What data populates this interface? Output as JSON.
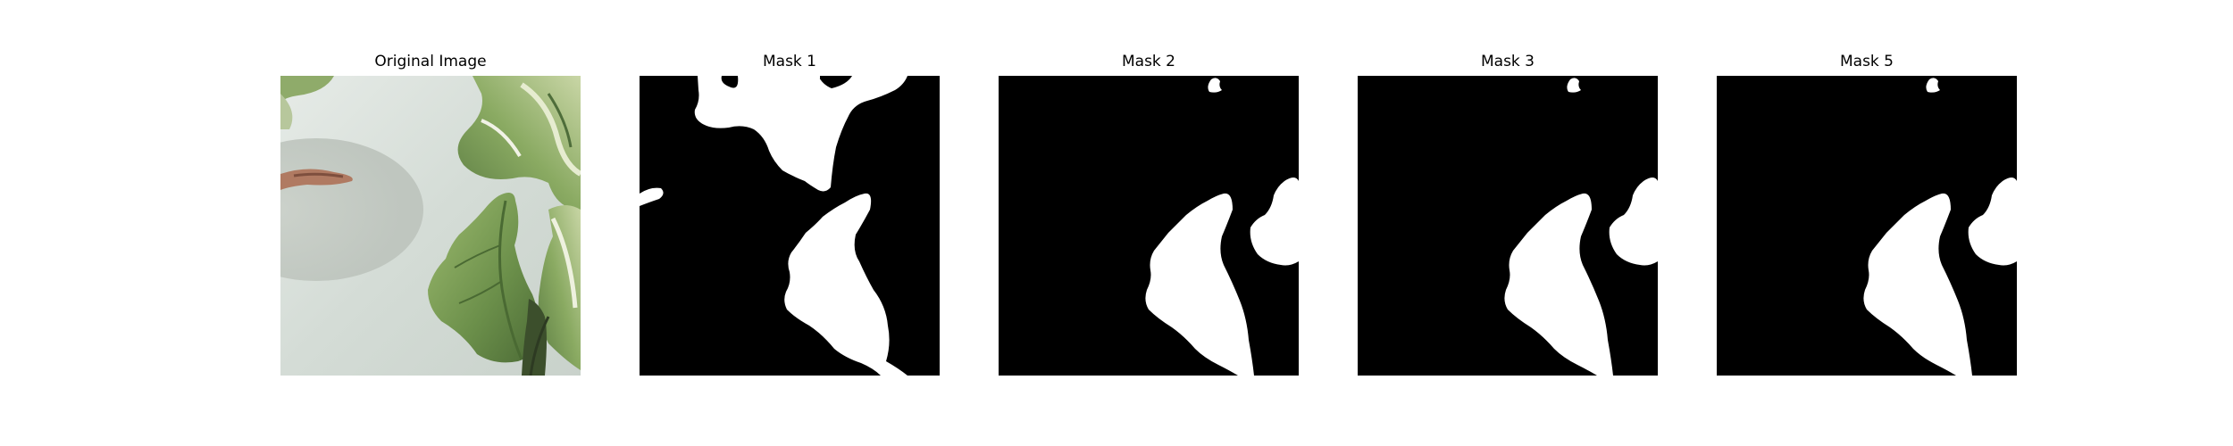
{
  "figure": {
    "panels": [
      {
        "title": "Original Image",
        "kind": "photo"
      },
      {
        "title": "Mask 1",
        "kind": "mask"
      },
      {
        "title": "Mask 2",
        "kind": "mask"
      },
      {
        "title": "Mask 3",
        "kind": "mask"
      },
      {
        "title": "Mask 5",
        "kind": "mask"
      }
    ],
    "colors": {
      "background": "#ffffff",
      "mask_background": "#000000",
      "mask_foreground": "#ffffff",
      "photo_surface": "#d7dfda",
      "leaf_dark": "#5d7f43",
      "leaf_light": "#98b86a"
    }
  }
}
